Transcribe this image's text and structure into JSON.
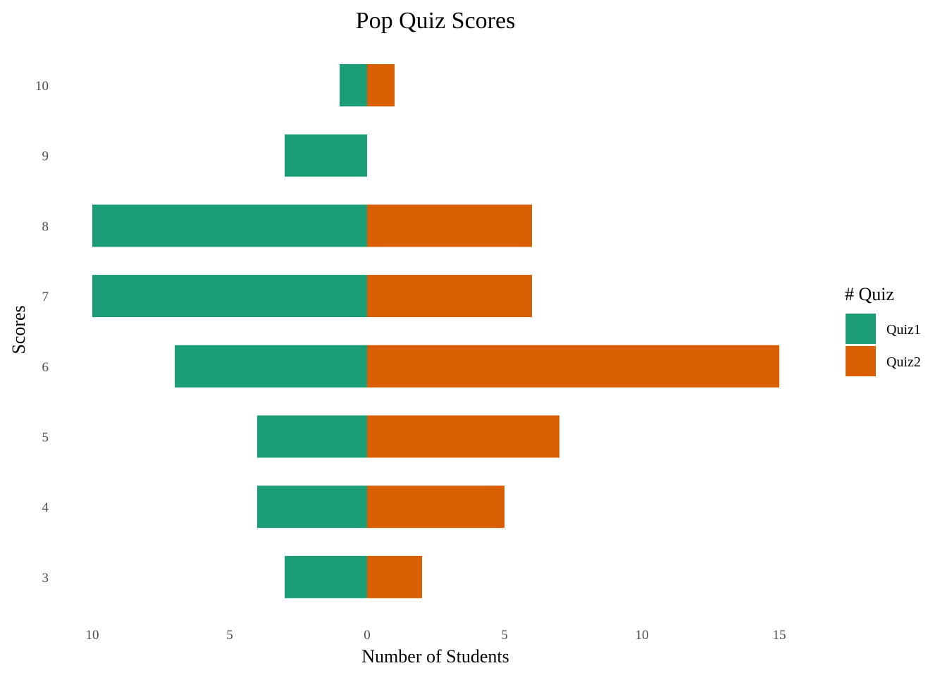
{
  "chart_data": {
    "type": "bar",
    "orientation": "horizontal-diverging",
    "title": "Pop Quiz Scores",
    "xlabel": "Number of Students",
    "ylabel": "Scores",
    "categories": [
      "3",
      "4",
      "5",
      "6",
      "7",
      "8",
      "9",
      "10"
    ],
    "series": [
      {
        "name": "Quiz1",
        "values": [
          3,
          4,
          4,
          7,
          10,
          10,
          3,
          1
        ],
        "color": "#1b9e77",
        "direction": "left"
      },
      {
        "name": "Quiz2",
        "values": [
          2,
          5,
          7,
          15,
          6,
          6,
          0,
          1
        ],
        "color": "#d95f02",
        "direction": "right"
      }
    ],
    "xlim": [
      -10,
      15
    ],
    "x_ticks": [
      -10,
      -5,
      0,
      5,
      10,
      15
    ],
    "x_tick_labels": [
      "10",
      "5",
      "0",
      "5",
      "10",
      "15"
    ],
    "grid": false,
    "legend": {
      "title": "# Quiz",
      "placement": "right"
    }
  }
}
